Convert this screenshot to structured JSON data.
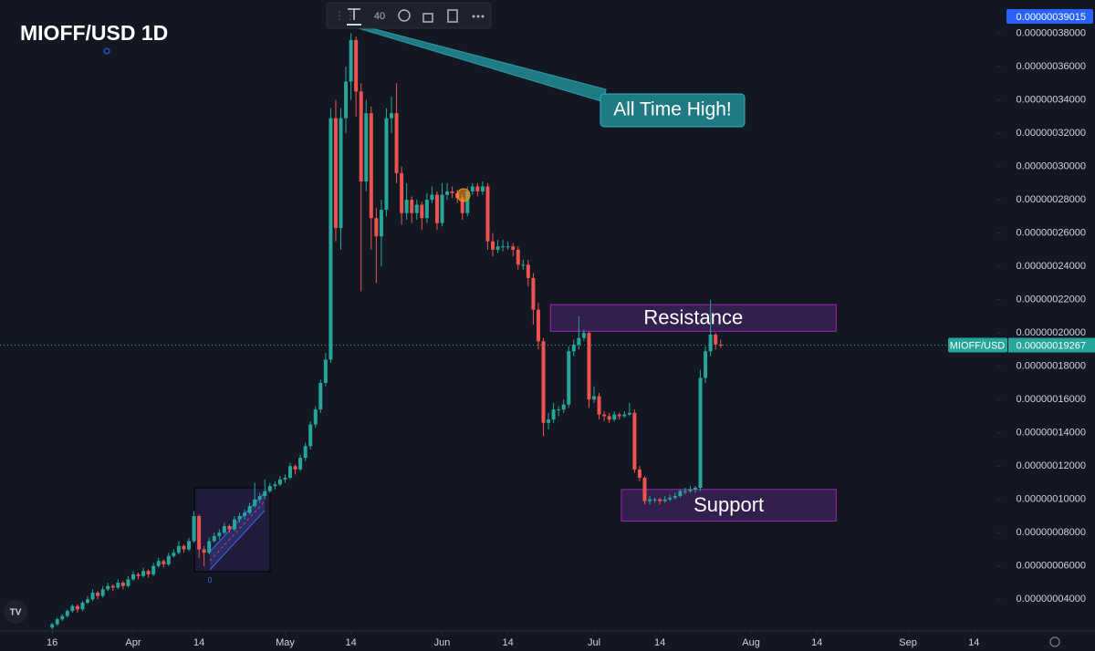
{
  "chart_data": {
    "type": "candlestick",
    "title": "MIOFF/USD 1D",
    "symbol": "MIOFF/USD",
    "x": [
      0,
      1,
      2,
      3,
      4,
      5,
      6,
      7,
      8,
      9,
      10,
      11,
      12,
      13,
      14,
      15,
      16,
      17,
      18,
      19,
      20,
      21,
      22,
      23,
      24,
      25,
      26,
      27,
      28,
      29,
      30,
      31,
      32,
      33,
      34,
      35,
      36,
      37,
      38,
      39,
      40,
      41,
      42,
      43,
      44,
      45,
      46,
      47,
      48,
      49,
      50,
      51,
      52,
      53,
      54,
      55,
      56,
      57,
      58,
      59,
      60,
      61,
      62,
      63,
      64,
      65,
      66,
      67,
      68,
      69,
      70,
      71,
      72,
      73,
      74,
      75,
      76,
      77,
      78,
      79,
      80,
      81,
      82,
      83,
      84,
      85,
      86,
      87,
      88,
      89,
      90,
      91,
      92,
      93,
      94,
      95,
      96,
      97,
      98,
      99,
      100,
      101,
      102,
      103,
      104,
      105,
      106,
      107,
      108,
      109,
      110,
      111,
      112,
      113,
      114,
      115,
      116,
      117,
      118,
      119,
      120,
      121,
      122,
      123,
      124,
      125,
      126,
      127,
      128,
      129,
      130,
      131,
      132
    ],
    "series": [
      {
        "name": "MIOFF/USD",
        "up_color": "#26a69a",
        "down_color": "#ef5350",
        "open": [
          2.3e-08,
          2.5e-08,
          2.8e-08,
          3e-08,
          3.3e-08,
          3.6e-08,
          3.4e-08,
          3.8e-08,
          4e-08,
          4.4e-08,
          4.2e-08,
          4.6e-08,
          4.8e-08,
          4.7e-08,
          5e-08,
          4.8e-08,
          5.2e-08,
          5.5e-08,
          5.4e-08,
          5.7e-08,
          5.5e-08,
          6e-08,
          6.3e-08,
          6.1e-08,
          6.6e-08,
          6.8e-08,
          7.2e-08,
          7e-08,
          7.5e-08,
          9e-08,
          7e-08,
          6.8e-08,
          7.5e-08,
          7.8e-08,
          8e-08,
          8.4e-08,
          8.2e-08,
          8.8e-08,
          9e-08,
          9.2e-08,
          9.6e-08,
          1e-07,
          1.02e-07,
          1.05e-07,
          1.08e-07,
          1.09e-07,
          1.12e-07,
          1.13e-07,
          1.2e-07,
          1.18e-07,
          1.25e-07,
          1.32e-07,
          1.45e-07,
          1.54e-07,
          1.7e-07,
          1.84e-07,
          3.29e-07,
          2.63e-07,
          3.29e-07,
          3.51e-07,
          3.76e-07,
          3.45e-07,
          2.91e-07,
          3.32e-07,
          2.69e-07,
          2.58e-07,
          2.74e-07,
          3.29e-07,
          3.32e-07,
          2.96e-07,
          2.72e-07,
          2.8e-07,
          2.72e-07,
          2.77e-07,
          2.69e-07,
          2.8e-07,
          2.83e-07,
          2.66e-07,
          2.83e-07,
          2.85e-07,
          2.84e-07,
          2.81e-07,
          2.72e-07,
          2.85e-07,
          2.88e-07,
          2.85e-07,
          2.88e-07,
          2.55e-07,
          2.5e-07,
          2.52e-07,
          2.52e-07,
          2.52e-07,
          2.5e-07,
          2.41e-07,
          2.41e-07,
          2.33e-07,
          2.14e-07,
          1.95e-07,
          1.46e-07,
          1.48e-07,
          1.54e-07,
          1.54e-07,
          1.57e-07,
          1.89e-07,
          1.93e-07,
          1.97e-07,
          2e-07,
          1.6e-07,
          1.62e-07,
          1.51e-07,
          1.5e-07,
          1.48e-07,
          1.51e-07,
          1.5e-07,
          1.51e-07,
          1.52e-07,
          1.18e-07,
          1.13e-07,
          9.9e-08,
          1e-07,
          1e-07,
          9.9e-08,
          1e-07,
          1.01e-07,
          1.02e-07,
          1.05e-07,
          1.05e-07,
          1.06e-07,
          1.07e-07,
          1.73e-07,
          1.89e-07,
          1.99e-07,
          1.93e-07
        ],
        "high": [
          2.6e-08,
          2.9e-08,
          3.1e-08,
          3.4e-08,
          3.7e-08,
          3.7e-08,
          3.9e-08,
          4.2e-08,
          4.6e-08,
          4.5e-08,
          4.8e-08,
          5e-08,
          4.9e-08,
          5.2e-08,
          5.1e-08,
          5.4e-08,
          5.7e-08,
          5.6e-08,
          5.9e-08,
          5.8e-08,
          6.2e-08,
          6.5e-08,
          6.4e-08,
          6.8e-08,
          7e-08,
          7.5e-08,
          7.3e-08,
          7.7e-08,
          9.3e-08,
          9.1e-08,
          7.2e-08,
          7.7e-08,
          8e-08,
          8.2e-08,
          8.6e-08,
          8.5e-08,
          9e-08,
          9.2e-08,
          9.4e-08,
          9.8e-08,
          1.1e-07,
          1.04e-07,
          1.12e-07,
          1.1e-07,
          1.11e-07,
          1.14e-07,
          1.15e-07,
          1.22e-07,
          1.21e-07,
          1.27e-07,
          1.34e-07,
          1.47e-07,
          1.56e-07,
          1.72e-07,
          1.88e-07,
          3.35e-07,
          3.4e-07,
          3.35e-07,
          3.6e-07,
          3.8e-07,
          3.78e-07,
          3.5e-07,
          3.4e-07,
          3.36e-07,
          2.75e-07,
          2.8e-07,
          3.35e-07,
          3.42e-07,
          3.5e-07,
          3e-07,
          2.9e-07,
          2.82e-07,
          2.8e-07,
          2.79e-07,
          2.84e-07,
          2.88e-07,
          2.85e-07,
          2.9e-07,
          2.9e-07,
          2.88e-07,
          2.86e-07,
          2.83e-07,
          2.88e-07,
          2.9e-07,
          2.9e-07,
          2.91e-07,
          2.9e-07,
          2.6e-07,
          2.56e-07,
          2.56e-07,
          2.55e-07,
          2.54e-07,
          2.52e-07,
          2.44e-07,
          2.44e-07,
          2.36e-07,
          2.18e-07,
          1.97e-07,
          1.52e-07,
          1.58e-07,
          1.56e-07,
          1.6e-07,
          1.92e-07,
          1.96e-07,
          2.1e-07,
          2.02e-07,
          2.01e-07,
          1.68e-07,
          1.64e-07,
          1.53e-07,
          1.52e-07,
          1.53e-07,
          1.52e-07,
          1.53e-07,
          1.58e-07,
          1.54e-07,
          1.2e-07,
          1.14e-07,
          1.02e-07,
          1.01e-07,
          1.01e-07,
          1.02e-07,
          1.03e-07,
          1.04e-07,
          1.06e-07,
          1.07e-07,
          1.08e-07,
          1.08e-07,
          1.78e-07,
          1.92e-07,
          2.2e-07,
          2e-07,
          1.96e-07
        ],
        "low": [
          2.2e-08,
          2.4e-08,
          2.7e-08,
          2.9e-08,
          3.2e-08,
          3.2e-08,
          3.3e-08,
          3.7e-08,
          3.9e-08,
          4e-08,
          4.1e-08,
          4.5e-08,
          4.5e-08,
          4.6e-08,
          4.6e-08,
          4.7e-08,
          5.1e-08,
          5.2e-08,
          5.3e-08,
          5.3e-08,
          5.4e-08,
          5.9e-08,
          5.9e-08,
          6e-08,
          6.5e-08,
          6.7e-08,
          6.8e-08,
          6.9e-08,
          7.4e-08,
          6.5e-08,
          6e-08,
          6.7e-08,
          7.4e-08,
          7.6e-08,
          7.9e-08,
          8e-08,
          8.1e-08,
          8.6e-08,
          8.8e-08,
          9.1e-08,
          9.5e-08,
          9.8e-08,
          1e-07,
          1.04e-07,
          1.06e-07,
          1.08e-07,
          1.1e-07,
          1.12e-07,
          1.15e-07,
          1.17e-07,
          1.23e-07,
          1.3e-07,
          1.43e-07,
          1.52e-07,
          1.68e-07,
          1.82e-07,
          2.55e-07,
          2.5e-07,
          3.2e-07,
          3.4e-07,
          3.3e-07,
          2.25e-07,
          2.85e-07,
          2.5e-07,
          2.3e-07,
          2.4e-07,
          2.7e-07,
          3.2e-07,
          2.9e-07,
          2.65e-07,
          2.68e-07,
          2.66e-07,
          2.68e-07,
          2.62e-07,
          2.66e-07,
          2.78e-07,
          2.62e-07,
          2.64e-07,
          2.8e-07,
          2.81e-07,
          2.78e-07,
          2.68e-07,
          2.7e-07,
          2.83e-07,
          2.82e-07,
          2.83e-07,
          2.5e-07,
          2.46e-07,
          2.48e-07,
          2.49e-07,
          2.5e-07,
          2.46e-07,
          2.38e-07,
          2.38e-07,
          2.28e-07,
          2.05e-07,
          1.9e-07,
          1.38e-07,
          1.42e-07,
          1.46e-07,
          1.5e-07,
          1.52e-07,
          1.55e-07,
          1.86e-07,
          1.9e-07,
          1.95e-07,
          1.55e-07,
          1.58e-07,
          1.48e-07,
          1.47e-07,
          1.46e-07,
          1.47e-07,
          1.48e-07,
          1.49e-07,
          1.5e-07,
          1.16e-07,
          1.11e-07,
          9.7e-08,
          9.7e-08,
          9.8e-08,
          9.7e-08,
          9.8e-08,
          9.9e-08,
          1e-07,
          1.01e-07,
          1.03e-07,
          1.04e-07,
          1.04e-07,
          1.05e-07,
          1.7e-07,
          1.86e-07,
          1.9e-07,
          1.91e-07
        ],
        "close": [
          2.5e-08,
          2.8e-08,
          3e-08,
          3.3e-08,
          3.6e-08,
          3.4e-08,
          3.8e-08,
          4e-08,
          4.4e-08,
          4.2e-08,
          4.6e-08,
          4.8e-08,
          4.7e-08,
          5e-08,
          4.8e-08,
          5.2e-08,
          5.5e-08,
          5.4e-08,
          5.7e-08,
          5.5e-08,
          6e-08,
          6.3e-08,
          6.1e-08,
          6.6e-08,
          6.8e-08,
          7.2e-08,
          7e-08,
          7.5e-08,
          9e-08,
          7e-08,
          6.8e-08,
          7.5e-08,
          7.8e-08,
          8e-08,
          8.4e-08,
          8.2e-08,
          8.8e-08,
          9e-08,
          9.2e-08,
          9.6e-08,
          1e-07,
          1.02e-07,
          1.05e-07,
          1.08e-07,
          1.09e-07,
          1.12e-07,
          1.13e-07,
          1.2e-07,
          1.18e-07,
          1.25e-07,
          1.32e-07,
          1.45e-07,
          1.54e-07,
          1.7e-07,
          1.84e-07,
          3.29e-07,
          2.63e-07,
          3.29e-07,
          3.51e-07,
          3.76e-07,
          3.45e-07,
          2.91e-07,
          3.32e-07,
          2.69e-07,
          2.58e-07,
          2.74e-07,
          3.29e-07,
          3.32e-07,
          2.96e-07,
          2.72e-07,
          2.8e-07,
          2.72e-07,
          2.77e-07,
          2.69e-07,
          2.8e-07,
          2.83e-07,
          2.66e-07,
          2.83e-07,
          2.85e-07,
          2.84e-07,
          2.81e-07,
          2.72e-07,
          2.85e-07,
          2.88e-07,
          2.85e-07,
          2.88e-07,
          2.55e-07,
          2.5e-07,
          2.52e-07,
          2.52e-07,
          2.52e-07,
          2.5e-07,
          2.41e-07,
          2.41e-07,
          2.33e-07,
          2.14e-07,
          1.95e-07,
          1.46e-07,
          1.48e-07,
          1.54e-07,
          1.54e-07,
          1.57e-07,
          1.89e-07,
          1.93e-07,
          1.97e-07,
          2e-07,
          1.6e-07,
          1.62e-07,
          1.51e-07,
          1.5e-07,
          1.48e-07,
          1.51e-07,
          1.5e-07,
          1.51e-07,
          1.52e-07,
          1.18e-07,
          1.13e-07,
          9.9e-08,
          1e-07,
          1e-07,
          9.9e-08,
          1e-07,
          1.01e-07,
          1.02e-07,
          1.05e-07,
          1.05e-07,
          1.06e-07,
          1.07e-07,
          1.73e-07,
          1.89e-07,
          1.99e-07,
          1.93e-07,
          1.9267e-07
        ]
      }
    ],
    "xlim": [
      -10.3,
      186.1
    ],
    "xticks": [
      {
        "value": 0,
        "label": "16"
      },
      {
        "value": 16,
        "label": "Apr"
      },
      {
        "value": 29,
        "label": "14"
      },
      {
        "value": 46,
        "label": "May"
      },
      {
        "value": 59,
        "label": "14"
      },
      {
        "value": 77,
        "label": "Jun"
      },
      {
        "value": 90,
        "label": "14"
      },
      {
        "value": 107,
        "label": "Jul"
      },
      {
        "value": 120,
        "label": "14"
      },
      {
        "value": 138,
        "label": "Aug"
      },
      {
        "value": 151,
        "label": "14"
      },
      {
        "value": 169,
        "label": "Sep"
      },
      {
        "value": 182,
        "label": "14"
      }
    ],
    "ylim": [
      2.1e-08,
      4e-07
    ],
    "yticks": [
      {
        "value": 4e-08,
        "label": "0.00000004000"
      },
      {
        "value": 6e-08,
        "label": "0.00000006000"
      },
      {
        "value": 8e-08,
        "label": "0.00000008000"
      },
      {
        "value": 1e-07,
        "label": "0.00000010000"
      },
      {
        "value": 1.2e-07,
        "label": "0.00000012000"
      },
      {
        "value": 1.4e-07,
        "label": "0.00000014000"
      },
      {
        "value": 1.6e-07,
        "label": "0.00000016000"
      },
      {
        "value": 1.8e-07,
        "label": "0.00000018000"
      },
      {
        "value": 2e-07,
        "label": "0.00000020000"
      },
      {
        "value": 2.2e-07,
        "label": "0.00000022000"
      },
      {
        "value": 2.4e-07,
        "label": "0.00000024000"
      },
      {
        "value": 2.6e-07,
        "label": "0.00000026000"
      },
      {
        "value": 2.8e-07,
        "label": "0.00000028000"
      },
      {
        "value": 3e-07,
        "label": "0.00000030000"
      },
      {
        "value": 3.2e-07,
        "label": "0.00000032000"
      },
      {
        "value": 3.4e-07,
        "label": "0.00000034000"
      },
      {
        "value": 3.6e-07,
        "label": "0.00000036000"
      },
      {
        "value": 3.8e-07,
        "label": "0.00000038000"
      }
    ],
    "last_price": {
      "value": 1.9267e-07,
      "label": "0.00000019267"
    },
    "crosshair_price": {
      "value": 3.9015e-07,
      "label": "0.00000039015"
    },
    "zones": [
      {
        "label": "Resistance",
        "x": [
          98.4,
          154.8
        ],
        "y": [
          2.01e-07,
          2.17e-07
        ]
      },
      {
        "label": "Support",
        "x": [
          112.4,
          154.8
        ],
        "y": [
          8.7e-08,
          1.06e-07
        ]
      }
    ],
    "annotation": "All Time High!",
    "channel_label": "0"
  },
  "toolbar": {
    "text_size": "40"
  }
}
